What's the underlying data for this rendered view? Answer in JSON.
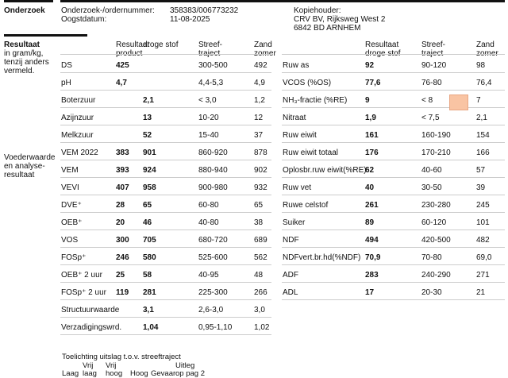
{
  "header": {
    "title": "Onderzoek",
    "order_label": "Onderzoek-/ordernummer:",
    "order_value": "358383/006773232",
    "date_label": "Oogstdatum:",
    "date_value": "11-08-2025",
    "copy_label": "Kopiehouder:",
    "copy_name": "CRV BV, Rijksweg West 2",
    "copy_city": "6842 BD  ARNHEM"
  },
  "sidebar": {
    "result_title": "Resultaat",
    "result_sub": [
      "in gram/kg,",
      "tenzij anders",
      "vermeld."
    ],
    "feed_title": [
      "Voederwaarde",
      "en analyse-",
      "resultaat"
    ]
  },
  "left_headers": {
    "col1": [
      "Resultaat",
      "product"
    ],
    "col2": [
      "",
      "droge stof"
    ],
    "col3": [
      "Streef-",
      "traject"
    ],
    "col4": [
      "Zand",
      "zomer"
    ]
  },
  "right_headers": {
    "col1": [
      "Resultaat",
      "droge stof"
    ],
    "col2": [
      "Streef-",
      "traject"
    ],
    "col3": [
      "Zand",
      "zomer"
    ]
  },
  "left_rows": [
    {
      "name": "DS",
      "product": "425",
      "ds": "",
      "target": "300-500",
      "zand": "492"
    },
    {
      "name": "pH",
      "product": "4,7",
      "ds": "",
      "target": "4,4-5,3",
      "zand": "4,9"
    },
    {
      "name": "Boterzuur",
      "product": "",
      "ds": "2,1",
      "target": "< 3,0",
      "zand": "1,2"
    },
    {
      "name": "Azijnzuur",
      "product": "",
      "ds": "13",
      "target": "10-20",
      "zand": "12"
    },
    {
      "name": "Melkzuur",
      "product": "",
      "ds": "52",
      "target": "15-40",
      "zand": "37"
    },
    {
      "name": "VEM 2022",
      "product": "383",
      "ds": "901",
      "target": "860-920",
      "zand": "878"
    },
    {
      "name": "VEM",
      "product": "393",
      "ds": "924",
      "target": "880-940",
      "zand": "902"
    },
    {
      "name": "VEVI",
      "product": "407",
      "ds": "958",
      "target": "900-980",
      "zand": "932"
    },
    {
      "name": "DVE⁺",
      "product": "28",
      "ds": "65",
      "target": "60-80",
      "zand": "65"
    },
    {
      "name": "OEB⁺",
      "product": "20",
      "ds": "46",
      "target": "40-80",
      "zand": "38"
    },
    {
      "name": "VOS",
      "product": "300",
      "ds": "705",
      "target": "680-720",
      "zand": "689"
    },
    {
      "name": "FOSp⁺",
      "product": "246",
      "ds": "580",
      "target": "525-600",
      "zand": "562"
    },
    {
      "name": "OEB⁺ 2 uur",
      "product": "25",
      "ds": "58",
      "target": "40-95",
      "zand": "48"
    },
    {
      "name": "FOSp⁺ 2 uur",
      "product": "119",
      "ds": "281",
      "target": "225-300",
      "zand": "266"
    },
    {
      "name": "Structuurwaarde",
      "product": "",
      "ds": "3,1",
      "target": "2,6-3,0",
      "zand": "3,0"
    },
    {
      "name": "Verzadigingswrd.",
      "product": "",
      "ds": "1,04",
      "target": "0,95-1,10",
      "zand": "1,02"
    }
  ],
  "right_rows": [
    {
      "name": "Ruw as",
      "ds": "92",
      "target": "90-120",
      "zand": "98"
    },
    {
      "name": "VCOS (%OS)",
      "ds": "77,6",
      "target": "76-80",
      "zand": "76,4"
    },
    {
      "name": "NH₃-fractie (%RE)",
      "ds": "9",
      "target": "< 8",
      "zand": "7"
    },
    {
      "name": "Nitraat",
      "ds": "1,9",
      "target": "< 7,5",
      "zand": "2,1"
    },
    {
      "name": "Ruw eiwit",
      "ds": "161",
      "target": "160-190",
      "zand": "154"
    },
    {
      "name": "Ruw eiwit totaal",
      "ds": "176",
      "target": "170-210",
      "zand": "166"
    },
    {
      "name": "Oplosbr.ruw eiwit(%RE)",
      "ds": "62",
      "target": "40-60",
      "zand": "57"
    },
    {
      "name": "Ruw vet",
      "ds": "40",
      "target": "30-50",
      "zand": "39"
    },
    {
      "name": "Ruwe celstof",
      "ds": "261",
      "target": "230-280",
      "zand": "245"
    },
    {
      "name": "Suiker",
      "ds": "89",
      "target": "60-120",
      "zand": "101"
    },
    {
      "name": "NDF",
      "ds": "494",
      "target": "420-500",
      "zand": "482"
    },
    {
      "name": "NDFvert.br.hd(%NDF)",
      "ds": "70,9",
      "target": "70-80",
      "zand": "69,0"
    },
    {
      "name": "ADF",
      "ds": "283",
      "target": "240-290",
      "zand": "271"
    },
    {
      "name": "ADL",
      "ds": "17",
      "target": "20-30",
      "zand": "21"
    }
  ],
  "legend": {
    "title": "Toelichting uitslag t.o.v. streeftraject",
    "line1": [
      "",
      "Vrij",
      "Vrij",
      "",
      "",
      "Uitleg"
    ],
    "line2": [
      "Laag",
      "laag",
      "hoog",
      "Hoog",
      "Gevaar",
      "op pag 2"
    ]
  },
  "colors": {
    "flag_high": "#f9c4a3"
  }
}
